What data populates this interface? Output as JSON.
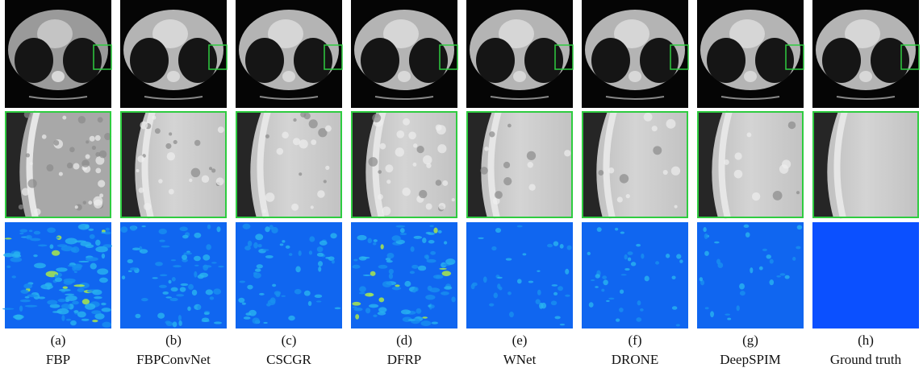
{
  "panels": [
    {
      "letter": "(a)",
      "method": "FBP"
    },
    {
      "letter": "(b)",
      "method": "FBPConvNet"
    },
    {
      "letter": "(c)",
      "method": "CSCGR"
    },
    {
      "letter": "(d)",
      "method": "DFRP"
    },
    {
      "letter": "(e)",
      "method": "WNet"
    },
    {
      "letter": "(f)",
      "method": "DRONE"
    },
    {
      "letter": "(g)",
      "method": "DeepSPIM"
    },
    {
      "letter": "(h)",
      "method": "Ground truth"
    }
  ]
}
